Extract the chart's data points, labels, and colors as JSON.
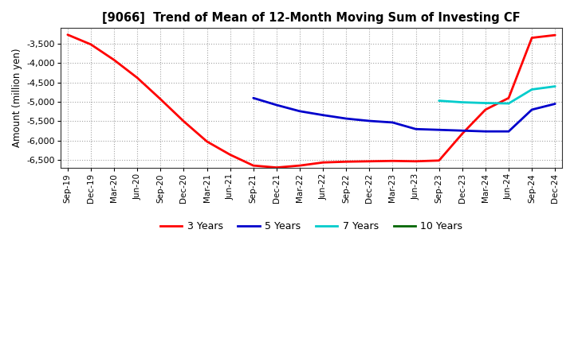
{
  "title": "[9066]  Trend of Mean of 12-Month Moving Sum of Investing CF",
  "ylabel": "Amount (million yen)",
  "background_color": "#ffffff",
  "grid_color": "#aaaaaa",
  "ylim": [
    -6700,
    -3100
  ],
  "yticks": [
    -6500,
    -6000,
    -5500,
    -5000,
    -4500,
    -4000,
    -3500
  ],
  "x_labels": [
    "Sep-19",
    "Dec-19",
    "Mar-20",
    "Jun-20",
    "Sep-20",
    "Dec-20",
    "Mar-21",
    "Jun-21",
    "Sep-21",
    "Dec-21",
    "Mar-22",
    "Jun-22",
    "Sep-22",
    "Dec-22",
    "Mar-23",
    "Jun-23",
    "Sep-23",
    "Dec-23",
    "Mar-24",
    "Jun-24",
    "Sep-24",
    "Dec-24"
  ],
  "series": {
    "3 Years": {
      "color": "#ff0000",
      "data_x": [
        0,
        1,
        2,
        3,
        4,
        5,
        6,
        7,
        8,
        9,
        10,
        11,
        12,
        13,
        14,
        15,
        16,
        17,
        18,
        19,
        20,
        21
      ],
      "data_y": [
        -3270,
        -3520,
        -3920,
        -4380,
        -4930,
        -5500,
        -6020,
        -6360,
        -6640,
        -6690,
        -6640,
        -6560,
        -6540,
        -6530,
        -6520,
        -6530,
        -6510,
        -5820,
        -5200,
        -4900,
        -3350,
        -3280
      ]
    },
    "5 Years": {
      "color": "#0000cc",
      "data_x": [
        8,
        9,
        10,
        11,
        12,
        13,
        14,
        15,
        16,
        17,
        18,
        19,
        20,
        21
      ],
      "data_y": [
        -4900,
        -5080,
        -5240,
        -5340,
        -5430,
        -5490,
        -5530,
        -5700,
        -5720,
        -5740,
        -5760,
        -5760,
        -5200,
        -5050
      ]
    },
    "7 Years": {
      "color": "#00cccc",
      "data_x": [
        16,
        17,
        18,
        19,
        20,
        21
      ],
      "data_y": [
        -4970,
        -5010,
        -5030,
        -5040,
        -4680,
        -4600
      ]
    },
    "10 Years": {
      "color": "#006600",
      "data_x": [],
      "data_y": []
    }
  },
  "legend": [
    {
      "label": "3 Years",
      "color": "#ff0000"
    },
    {
      "label": "5 Years",
      "color": "#0000cc"
    },
    {
      "label": "7 Years",
      "color": "#00cccc"
    },
    {
      "label": "10 Years",
      "color": "#006600"
    }
  ]
}
